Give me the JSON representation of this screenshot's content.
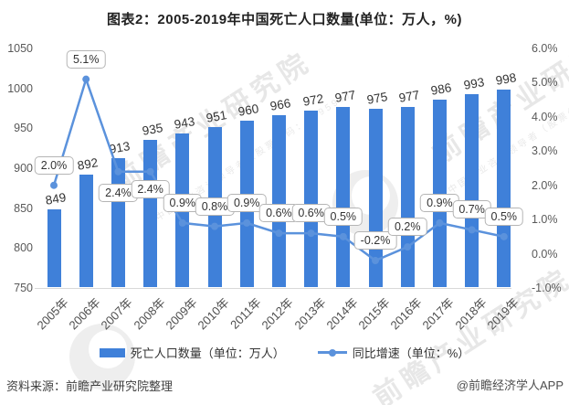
{
  "title": "图表2：2005-2019年中国死亡人口数量(单位：万人，%)",
  "watermark": {
    "brand_text": "前瞻产业研究院",
    "sub_text": "中国产业咨询领导者（股票代码：839599）"
  },
  "chart_data": {
    "type": "combo-bar-line",
    "title": "图表2：2005-2019年中国死亡人口数量(单位：万人，%)",
    "categories": [
      "2005年",
      "2006年",
      "2007年",
      "2008年",
      "2009年",
      "2010年",
      "2011年",
      "2012年",
      "2013年",
      "2014年",
      "2015年",
      "2016年",
      "2017年",
      "2018年",
      "2019年"
    ],
    "series": [
      {
        "name": "死亡人口数量（单位：万人）",
        "type": "bar",
        "axis": "left",
        "color": "#3F80D9",
        "values": [
          849,
          892,
          913,
          935,
          943,
          951,
          960,
          966,
          972,
          977,
          975,
          977,
          986,
          993,
          998
        ]
      },
      {
        "name": "同比增速（单位：%）",
        "type": "line",
        "axis": "right",
        "color": "#5B92DC",
        "values": [
          2.0,
          5.1,
          2.4,
          2.4,
          0.9,
          0.8,
          0.9,
          0.6,
          0.6,
          0.5,
          -0.2,
          0.2,
          0.9,
          0.7,
          0.5
        ],
        "labels": [
          "2.0%",
          "5.1%",
          "2.4%",
          "2.4%",
          "0.9%",
          "0.8%",
          "0.9%",
          "0.6%",
          "0.6%",
          "0.5%",
          "-0.2%",
          "0.2%",
          "0.9%",
          "0.7%",
          "0.5%"
        ]
      }
    ],
    "left_axis": {
      "min": 750,
      "max": 1050,
      "step": 50,
      "ticks": [
        "1050",
        "1000",
        "950",
        "900",
        "850",
        "800",
        "750"
      ]
    },
    "right_axis": {
      "min": -1.0,
      "max": 6.0,
      "step": 1.0,
      "ticks": [
        "6.0%",
        "5.0%",
        "4.0%",
        "3.0%",
        "2.0%",
        "1.0%",
        "0.0%",
        "-1.0%"
      ]
    },
    "grid": false,
    "legend_position": "bottom-center"
  },
  "footer": {
    "source": "资料来源：前瞻产业研究院整理",
    "credit": "@前瞻经济学人APP"
  }
}
